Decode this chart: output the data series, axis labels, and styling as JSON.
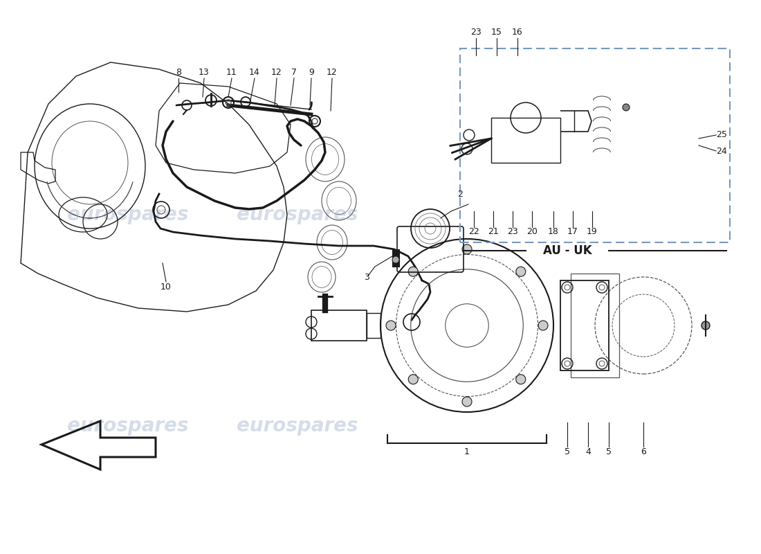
{
  "bg_color": "#ffffff",
  "line_color": "#1a1a1a",
  "light_line": "#555555",
  "watermark_color": "#c5cfe0",
  "watermark_text": "eurospares",
  "inset_border_color": "#7799bb",
  "au_uk_text": "AU - UK"
}
